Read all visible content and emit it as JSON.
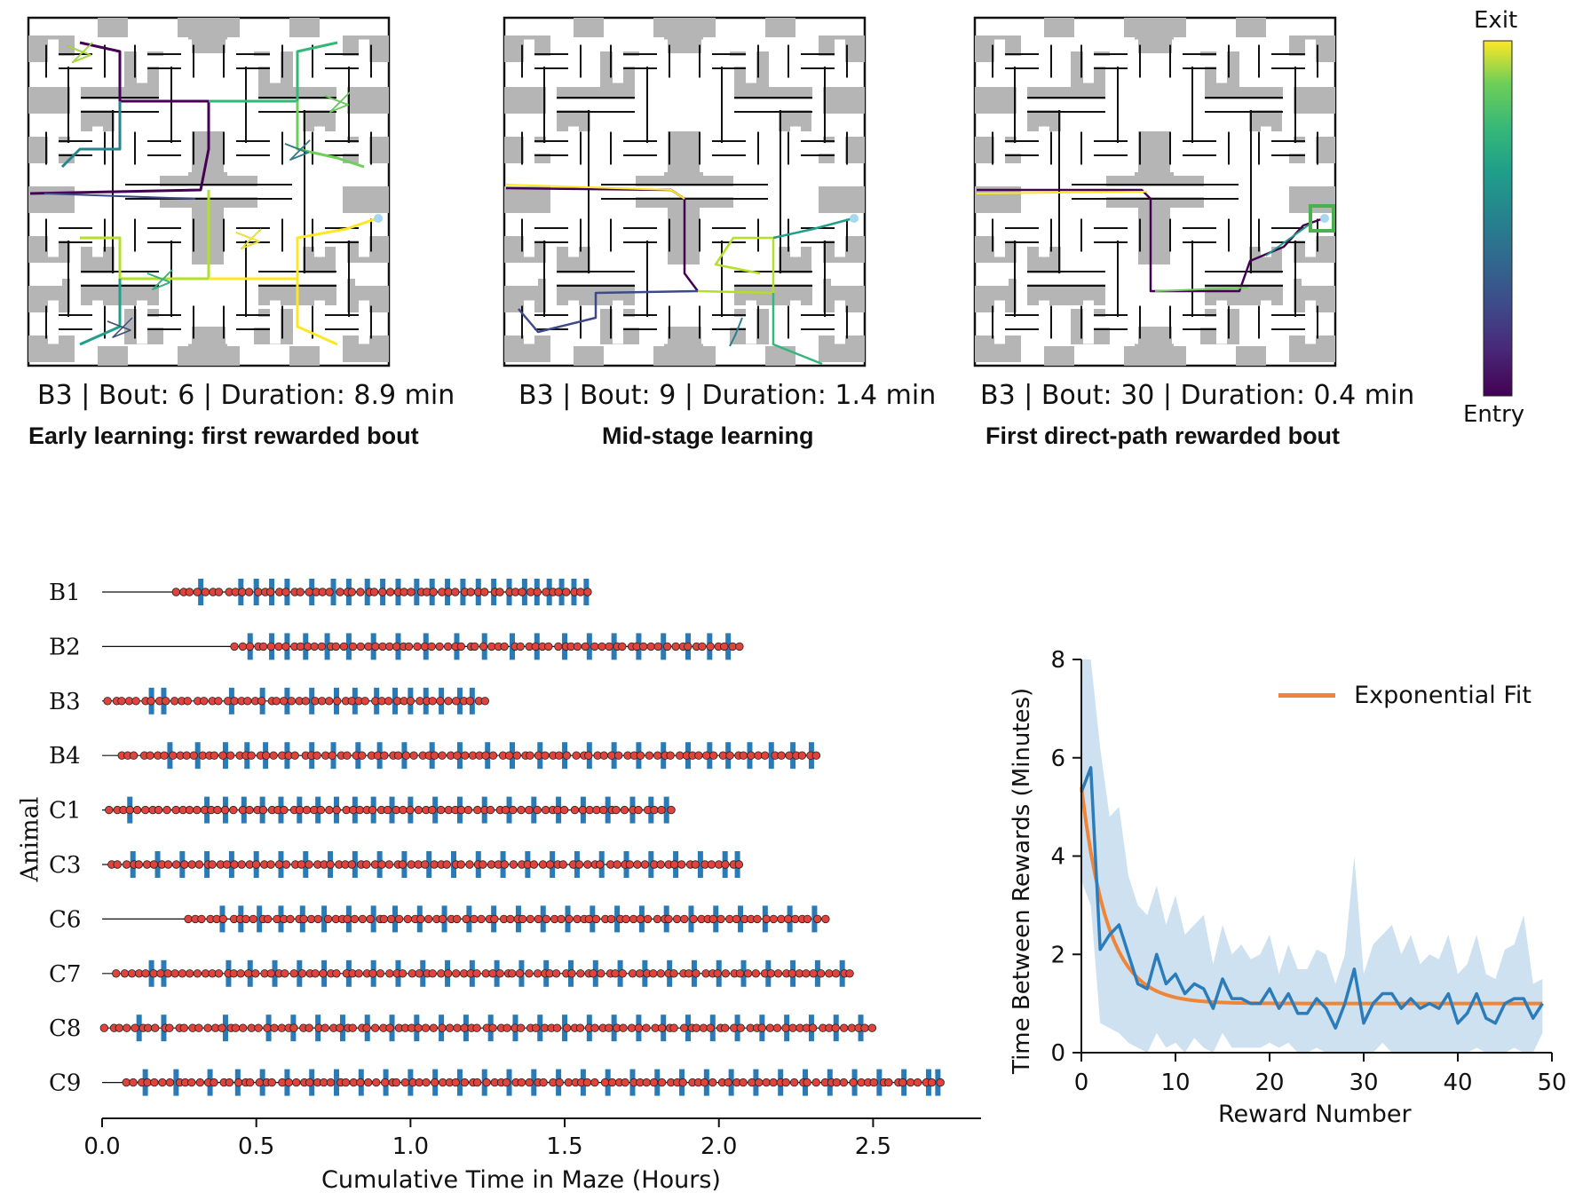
{
  "colors": {
    "wall": "#111111",
    "block_fill": "#b5b5b5",
    "reward_tick": "#2a7ab5",
    "event_dot": "#e0433c",
    "mean_line": "#2b7cb8",
    "band": "#c6dcee",
    "fit": "#ef8538",
    "highlight": "#4caf50"
  },
  "colorbar": {
    "colormap": "viridis",
    "top_label": "Exit",
    "bottom_label": "Entry"
  },
  "maze_panels": [
    {
      "caption": "B3 | Bout: 6 | Duration: 8.9 min",
      "subtitle": "Early learning: first rewarded bout"
    },
    {
      "caption": "B3 | Bout: 9 | Duration: 1.4 min",
      "subtitle": "Mid-stage learning"
    },
    {
      "caption": "B3 | Bout: 30 | Duration: 0.4 min",
      "subtitle": "First direct-path rewarded bout"
    }
  ],
  "chart_data": [
    {
      "type": "scatter",
      "ylabel": "Animal",
      "xlabel": "Cumulative Time in Maze (Hours)",
      "xlim": [
        0,
        2.85
      ],
      "xticks": [
        "0.0",
        "0.5",
        "1.0",
        "1.5",
        "2.0",
        "2.5"
      ],
      "xtick_values": [
        0,
        0.5,
        1.0,
        1.5,
        2.0,
        2.5
      ],
      "legend": "none",
      "grid": false,
      "animals": [
        {
          "name": "B1",
          "first_event": 0.24,
          "end": 1.58,
          "rewards": [
            0.32,
            0.45,
            0.5,
            0.55,
            0.6,
            0.68,
            0.75,
            0.8,
            0.86,
            0.91,
            0.96,
            1.02,
            1.07,
            1.12,
            1.17,
            1.22,
            1.27,
            1.32,
            1.37,
            1.41,
            1.45,
            1.49,
            1.53,
            1.57
          ]
        },
        {
          "name": "B2",
          "first_event": 0.43,
          "end": 2.07,
          "rewards": [
            0.48,
            0.55,
            0.6,
            0.66,
            0.73,
            0.8,
            0.88,
            0.96,
            1.05,
            1.15,
            1.24,
            1.33,
            1.41,
            1.5,
            1.58,
            1.66,
            1.74,
            1.82,
            1.9,
            1.97,
            2.03
          ]
        },
        {
          "name": "B3",
          "first_event": 0.02,
          "end": 1.24,
          "rewards": [
            0.16,
            0.2,
            0.42,
            0.52,
            0.6,
            0.68,
            0.76,
            0.82,
            0.89,
            0.95,
            1.0,
            1.05,
            1.1,
            1.16,
            1.2
          ]
        },
        {
          "name": "B4",
          "first_event": 0.06,
          "end": 2.32,
          "rewards": [
            0.22,
            0.31,
            0.4,
            0.47,
            0.53,
            0.6,
            0.68,
            0.75,
            0.83,
            0.9,
            0.98,
            1.07,
            1.16,
            1.25,
            1.33,
            1.42,
            1.5,
            1.58,
            1.66,
            1.74,
            1.82,
            1.9,
            1.97,
            2.03,
            2.1,
            2.17,
            2.24,
            2.3
          ]
        },
        {
          "name": "C1",
          "first_event": 0.02,
          "end": 1.84,
          "rewards": [
            0.09,
            0.34,
            0.4,
            0.46,
            0.52,
            0.58,
            0.64,
            0.7,
            0.76,
            0.82,
            0.88,
            0.94,
            1.0,
            1.08,
            1.16,
            1.24,
            1.32,
            1.4,
            1.48,
            1.56,
            1.64,
            1.72,
            1.78,
            1.83
          ]
        },
        {
          "name": "C3",
          "first_event": 0.03,
          "end": 2.07,
          "rewards": [
            0.1,
            0.18,
            0.26,
            0.34,
            0.42,
            0.5,
            0.58,
            0.66,
            0.74,
            0.82,
            0.9,
            0.98,
            1.06,
            1.14,
            1.22,
            1.3,
            1.38,
            1.46,
            1.54,
            1.62,
            1.7,
            1.78,
            1.86,
            1.94,
            2.02,
            2.06
          ]
        },
        {
          "name": "C6",
          "first_event": 0.28,
          "end": 2.34,
          "rewards": [
            0.39,
            0.45,
            0.51,
            0.58,
            0.65,
            0.72,
            0.8,
            0.88,
            0.95,
            1.03,
            1.11,
            1.19,
            1.27,
            1.35,
            1.43,
            1.51,
            1.59,
            1.67,
            1.75,
            1.83,
            1.91,
            1.99,
            2.07,
            2.15,
            2.23,
            2.31
          ]
        },
        {
          "name": "C7",
          "first_event": 0.05,
          "end": 2.43,
          "rewards": [
            0.16,
            0.2,
            0.41,
            0.48,
            0.56,
            0.64,
            0.72,
            0.8,
            0.88,
            0.96,
            1.04,
            1.12,
            1.2,
            1.28,
            1.36,
            1.44,
            1.52,
            1.6,
            1.68,
            1.76,
            1.84,
            1.92,
            2.0,
            2.08,
            2.16,
            2.24,
            2.32,
            2.4
          ]
        },
        {
          "name": "C8",
          "first_event": 0.01,
          "end": 2.5,
          "rewards": [
            0.12,
            0.2,
            0.4,
            0.54,
            0.62,
            0.7,
            0.78,
            0.86,
            0.94,
            1.02,
            1.1,
            1.18,
            1.26,
            1.34,
            1.42,
            1.5,
            1.58,
            1.66,
            1.74,
            1.82,
            1.9,
            1.98,
            2.06,
            2.14,
            2.22,
            2.3,
            2.38,
            2.46
          ]
        },
        {
          "name": "C9",
          "first_event": 0.08,
          "end": 2.72,
          "rewards": [
            0.14,
            0.24,
            0.35,
            0.44,
            0.52,
            0.6,
            0.68,
            0.76,
            0.84,
            0.92,
            1.0,
            1.08,
            1.16,
            1.24,
            1.32,
            1.4,
            1.48,
            1.56,
            1.64,
            1.72,
            1.8,
            1.88,
            1.96,
            2.04,
            2.12,
            2.2,
            2.28,
            2.36,
            2.44,
            2.52,
            2.6,
            2.68,
            2.71
          ]
        }
      ]
    },
    {
      "type": "line",
      "xlabel": "Reward Number",
      "ylabel": "Time Between Rewards (Minutes)",
      "xlim": [
        0,
        50
      ],
      "ylim": [
        0,
        8
      ],
      "xticks": [
        "0",
        "10",
        "20",
        "30",
        "40",
        "50"
      ],
      "xtick_values": [
        0,
        10,
        20,
        30,
        40,
        50
      ],
      "yticks": [
        "0",
        "2",
        "4",
        "6",
        "8"
      ],
      "ytick_values": [
        0,
        2,
        4,
        6,
        8
      ],
      "legend_position": "top-right",
      "fit": {
        "name": "Exponential Fit",
        "a": 4.4,
        "b": 1.0,
        "tau": 2.8
      },
      "x": [
        0,
        1,
        2,
        3,
        4,
        5,
        6,
        7,
        8,
        9,
        10,
        11,
        12,
        13,
        14,
        15,
        16,
        17,
        18,
        19,
        20,
        21,
        22,
        23,
        24,
        25,
        26,
        27,
        28,
        29,
        30,
        31,
        32,
        33,
        34,
        35,
        36,
        37,
        38,
        39,
        40,
        41,
        42,
        43,
        44,
        45,
        46,
        47,
        48,
        49
      ],
      "mean": [
        5.3,
        5.8,
        2.1,
        2.4,
        2.6,
        2.0,
        1.4,
        1.3,
        2.0,
        1.4,
        1.6,
        1.2,
        1.4,
        1.3,
        0.9,
        1.5,
        1.1,
        1.1,
        1.0,
        1.0,
        1.3,
        0.9,
        1.2,
        0.8,
        0.8,
        1.1,
        0.9,
        0.5,
        1.0,
        1.7,
        0.6,
        1.0,
        1.2,
        1.2,
        0.9,
        1.1,
        0.9,
        1.0,
        0.9,
        1.2,
        0.6,
        0.8,
        1.2,
        0.7,
        0.6,
        1.0,
        1.1,
        1.1,
        0.7,
        1.0
      ],
      "upper": [
        8.0,
        8.0,
        6.2,
        4.8,
        5.0,
        3.6,
        3.0,
        2.8,
        3.4,
        2.6,
        3.2,
        2.4,
        2.6,
        2.8,
        1.8,
        2.6,
        2.0,
        2.2,
        1.9,
        2.0,
        2.4,
        1.6,
        2.2,
        1.7,
        1.7,
        2.1,
        2.0,
        1.4,
        2.0,
        4.0,
        1.6,
        2.2,
        2.4,
        2.6,
        2.0,
        2.4,
        1.8,
        2.0,
        1.9,
        2.4,
        1.6,
        1.8,
        2.4,
        1.6,
        1.5,
        2.1,
        2.2,
        2.8,
        1.4,
        1.5
      ],
      "lower": [
        3.5,
        3.0,
        0.6,
        0.5,
        0.4,
        0.2,
        0.1,
        0.0,
        0.4,
        0.1,
        0.2,
        0.0,
        0.3,
        0.1,
        0.0,
        0.4,
        0.1,
        0.1,
        0.1,
        0.1,
        0.2,
        0.1,
        0.2,
        0.0,
        0.0,
        0.1,
        0.0,
        0.0,
        0.0,
        0.0,
        0.0,
        0.0,
        0.2,
        0.0,
        0.0,
        0.0,
        0.0,
        0.0,
        0.0,
        0.0,
        0.0,
        0.0,
        0.1,
        0.0,
        0.0,
        0.0,
        0.1,
        0.0,
        0.0,
        0.4
      ]
    }
  ]
}
